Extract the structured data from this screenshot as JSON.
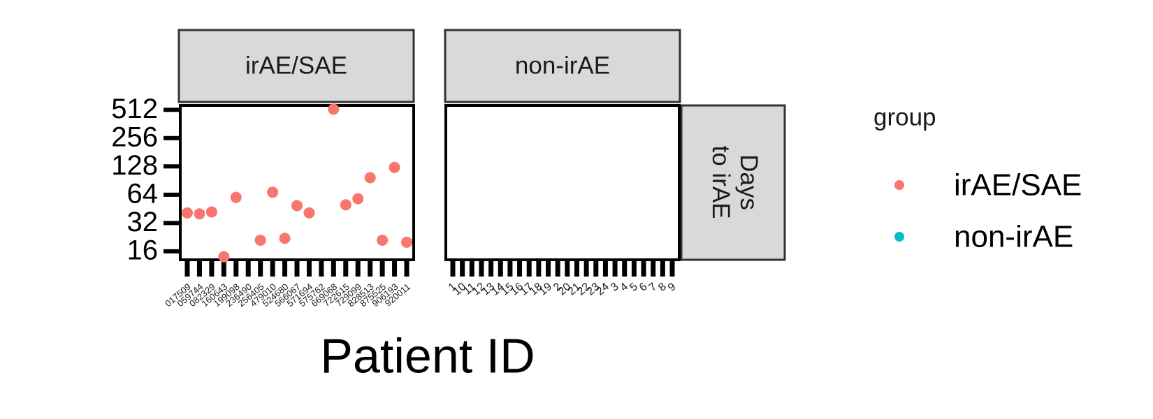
{
  "chart_data": {
    "type": "scatter",
    "x_label": "Patient ID",
    "y_scale": "log2",
    "y_ticks": [
      16,
      32,
      64,
      128,
      256,
      512
    ],
    "ylim": [
      13,
      570
    ],
    "facet_rows": [
      "Days to irAE"
    ],
    "legend": {
      "title": "group",
      "position": "right",
      "entries": [
        {
          "label": "irAE/SAE",
          "color": "#F8766D"
        },
        {
          "label": "non-irAE",
          "color": "#00BFC4"
        }
      ]
    },
    "panels": [
      {
        "label": "irAE/SAE",
        "categories": [
          "017509",
          "059744",
          "082329",
          "160643",
          "199098",
          "236490",
          "256405",
          "479010",
          "524680",
          "566067",
          "571694",
          "575762",
          "669068",
          "722615",
          "729099",
          "828513",
          "875525",
          "906193",
          "920011"
        ],
        "points": [
          {
            "x": "017509",
            "y": 41
          },
          {
            "x": "059744",
            "y": 40
          },
          {
            "x": "082329",
            "y": 42
          },
          {
            "x": "160643",
            "y": 14
          },
          {
            "x": "199098",
            "y": 60
          },
          {
            "x": "256405",
            "y": 21
          },
          {
            "x": "479010",
            "y": 68
          },
          {
            "x": "524680",
            "y": 22
          },
          {
            "x": "566067",
            "y": 49
          },
          {
            "x": "571694",
            "y": 41
          },
          {
            "x": "669068",
            "y": 520
          },
          {
            "x": "722615",
            "y": 50
          },
          {
            "x": "729099",
            "y": 58
          },
          {
            "x": "828513",
            "y": 97
          },
          {
            "x": "875525",
            "y": 21
          },
          {
            "x": "906193",
            "y": 125
          },
          {
            "x": "920011",
            "y": 20
          }
        ]
      },
      {
        "label": "non-irAE",
        "categories": [
          "1",
          "10",
          "11",
          "12",
          "13",
          "14",
          "15",
          "16",
          "17",
          "18",
          "19",
          "2",
          "20",
          "21",
          "22",
          "23",
          "24",
          "3",
          "4",
          "5",
          "6",
          "7",
          "8",
          "9"
        ],
        "points": []
      }
    ]
  }
}
